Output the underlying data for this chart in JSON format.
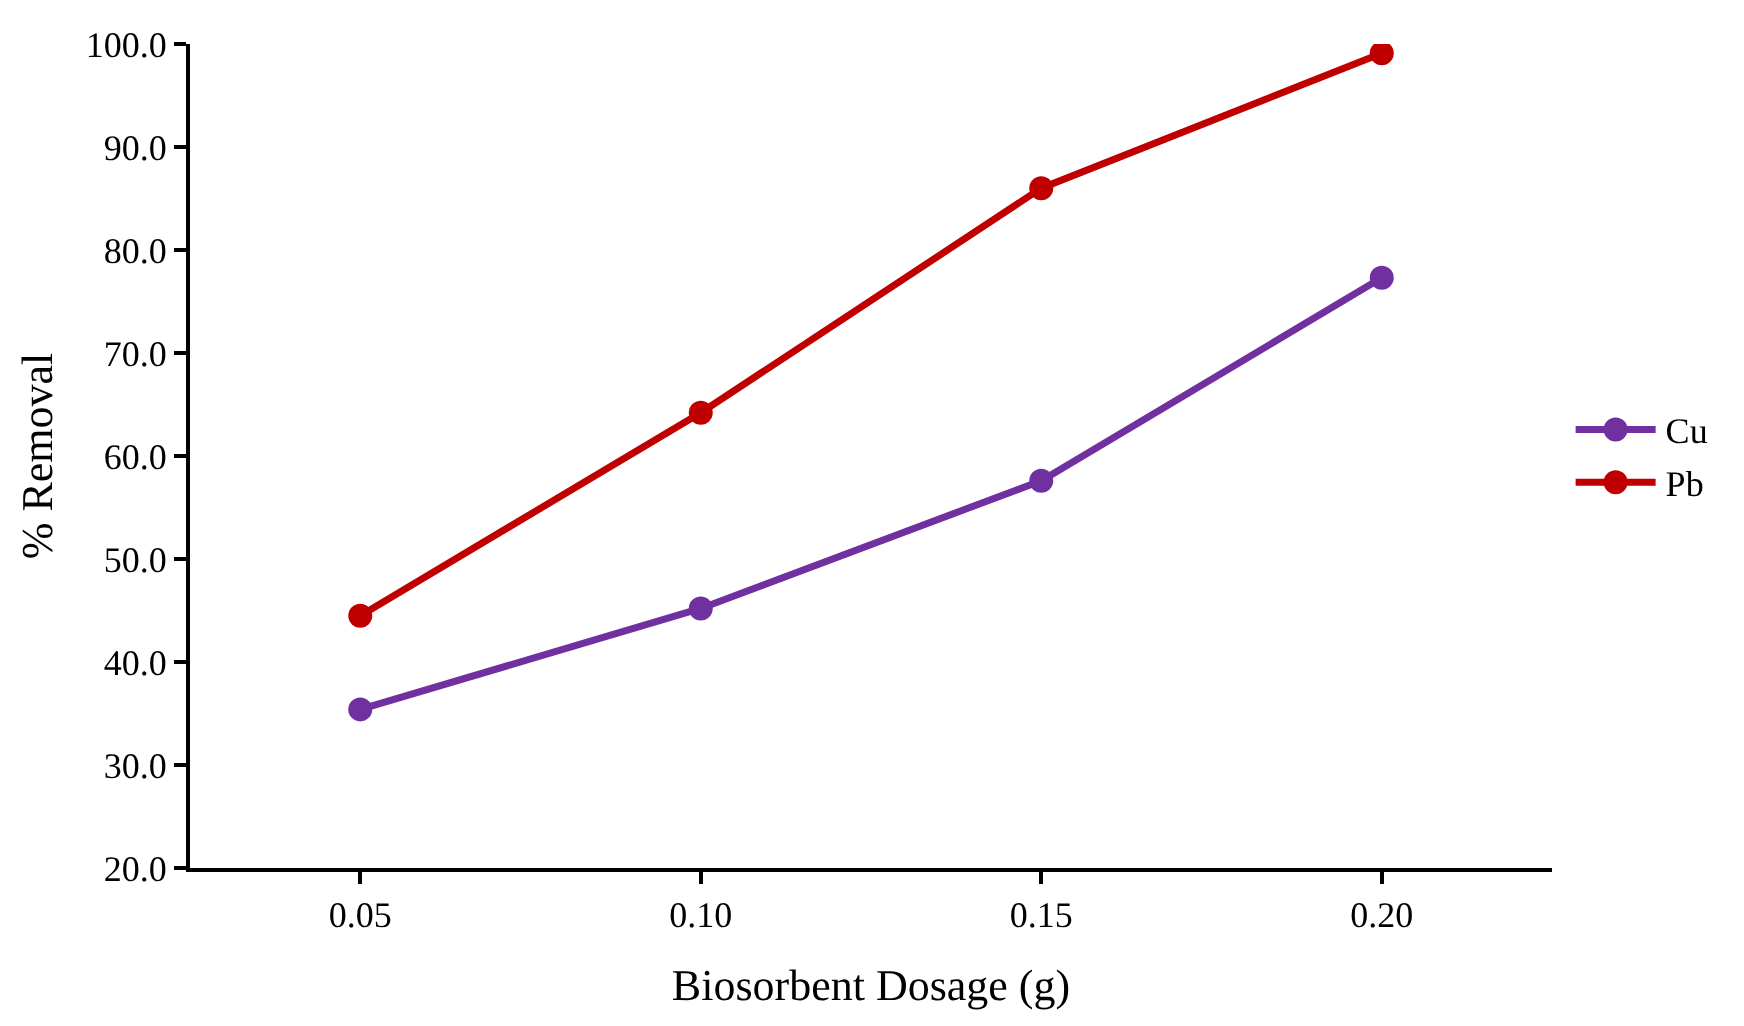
{
  "chart_data": {
    "type": "line",
    "xlabel": "Biosorbent Dosage (g)",
    "ylabel": "% Removal",
    "x": [
      0.05,
      0.1,
      0.15,
      0.2
    ],
    "xlim": [
      0.025,
      0.225
    ],
    "xticks": [
      {
        "value": 0.05,
        "label": "0.05"
      },
      {
        "value": 0.1,
        "label": "0.10"
      },
      {
        "value": 0.15,
        "label": "0.15"
      },
      {
        "value": 0.2,
        "label": "0.20"
      }
    ],
    "ylim": [
      20,
      100
    ],
    "yticks": [
      {
        "value": 20,
        "label": "20.0"
      },
      {
        "value": 30,
        "label": "30.0"
      },
      {
        "value": 40,
        "label": "40.0"
      },
      {
        "value": 50,
        "label": "50.0"
      },
      {
        "value": 60,
        "label": "60.0"
      },
      {
        "value": 70,
        "label": "70.0"
      },
      {
        "value": 80,
        "label": "80.0"
      },
      {
        "value": 90,
        "label": "90.0"
      },
      {
        "value": 100,
        "label": "100.0"
      }
    ],
    "series": [
      {
        "name": "Cu",
        "color": "#7030a0",
        "values": [
          35.4,
          45.2,
          57.6,
          77.3
        ]
      },
      {
        "name": "Pb",
        "color": "#c00000",
        "values": [
          44.5,
          64.2,
          86.0,
          99.1
        ]
      }
    ],
    "marker": "circle",
    "line_style": "solid",
    "legend": "right"
  }
}
